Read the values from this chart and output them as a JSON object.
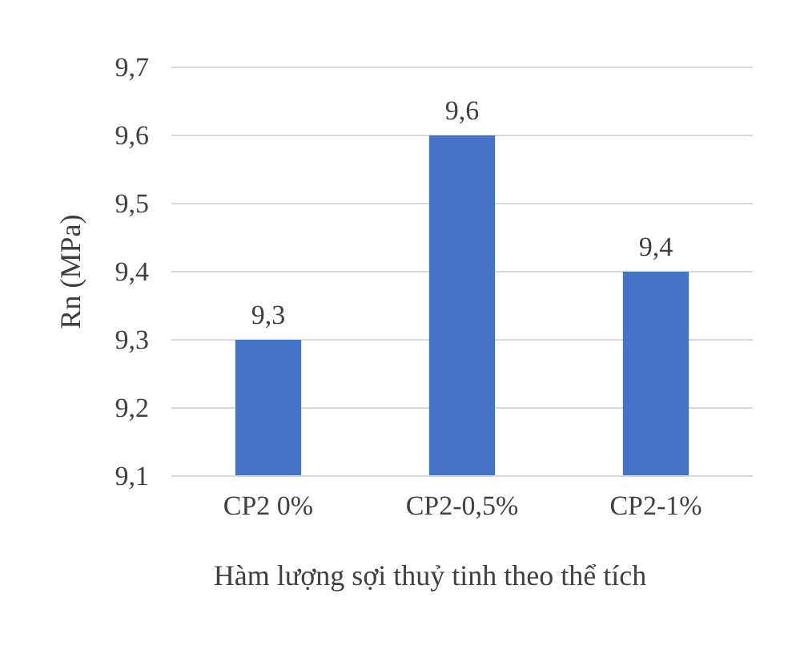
{
  "chart_data": {
    "type": "bar",
    "xlabel": "Hàm lượng sợi thuỷ tinh theo thể tích",
    "ylabel": "Rn (MPa)",
    "categories": [
      "CP2 0%",
      "CP2-0,5%",
      "CP2-1%"
    ],
    "values": [
      9.3,
      9.6,
      9.4
    ],
    "color": "#4472c4",
    "value_labels": [
      "9,3",
      "9,6",
      "9,4"
    ],
    "ylim": [
      9.1,
      9.7
    ],
    "yticks": [
      {
        "value": 9.1,
        "label": "9,1"
      },
      {
        "value": 9.2,
        "label": "9,2"
      },
      {
        "value": 9.3,
        "label": "9,3"
      },
      {
        "value": 9.4,
        "label": "9,4"
      },
      {
        "value": 9.5,
        "label": "9,5"
      },
      {
        "value": 9.6,
        "label": "9,6"
      },
      {
        "value": 9.7,
        "label": "9,7"
      }
    ],
    "grid": "y"
  }
}
